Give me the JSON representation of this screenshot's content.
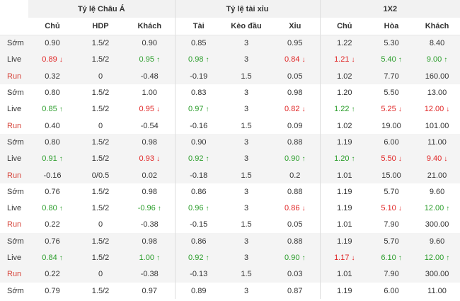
{
  "groups": [
    {
      "title": "Tỷ lệ Châu Á",
      "columns": [
        "Chủ",
        "HDP",
        "Khách"
      ]
    },
    {
      "title": "Tỷ lệ tài xỉu",
      "columns": [
        "Tài",
        "Kèo đầu",
        "Xỉu"
      ]
    },
    {
      "title": "1X2",
      "columns": [
        "Chủ",
        "Hòa",
        "Khách"
      ]
    }
  ],
  "colors": {
    "up": "#2a9d2a",
    "down": "#e02424",
    "run_label": "#d6443a"
  },
  "rows": [
    {
      "label": "Sớm",
      "type": "som",
      "cells": [
        {
          "v": "0.90"
        },
        {
          "v": "1.5/2"
        },
        {
          "v": "0.90"
        },
        {
          "v": "0.85"
        },
        {
          "v": "3"
        },
        {
          "v": "0.95"
        },
        {
          "v": "1.22"
        },
        {
          "v": "5.30"
        },
        {
          "v": "8.40"
        }
      ]
    },
    {
      "label": "Live",
      "type": "live",
      "cells": [
        {
          "v": "0.89",
          "d": "down"
        },
        {
          "v": "1.5/2"
        },
        {
          "v": "0.95",
          "d": "up"
        },
        {
          "v": "0.98",
          "d": "up"
        },
        {
          "v": "3"
        },
        {
          "v": "0.84",
          "d": "down"
        },
        {
          "v": "1.21",
          "d": "down"
        },
        {
          "v": "5.40",
          "d": "up"
        },
        {
          "v": "9.00",
          "d": "up"
        }
      ]
    },
    {
      "label": "Run",
      "type": "run",
      "cells": [
        {
          "v": "0.32"
        },
        {
          "v": "0"
        },
        {
          "v": "-0.48"
        },
        {
          "v": "-0.19"
        },
        {
          "v": "1.5"
        },
        {
          "v": "0.05"
        },
        {
          "v": "1.02"
        },
        {
          "v": "7.70"
        },
        {
          "v": "160.00"
        }
      ]
    },
    {
      "label": "Sớm",
      "type": "som",
      "cells": [
        {
          "v": "0.80"
        },
        {
          "v": "1.5/2"
        },
        {
          "v": "1.00"
        },
        {
          "v": "0.83"
        },
        {
          "v": "3"
        },
        {
          "v": "0.98"
        },
        {
          "v": "1.20"
        },
        {
          "v": "5.50"
        },
        {
          "v": "13.00"
        }
      ]
    },
    {
      "label": "Live",
      "type": "live",
      "cells": [
        {
          "v": "0.85",
          "d": "up"
        },
        {
          "v": "1.5/2"
        },
        {
          "v": "0.95",
          "d": "down"
        },
        {
          "v": "0.97",
          "d": "up"
        },
        {
          "v": "3"
        },
        {
          "v": "0.82",
          "d": "down"
        },
        {
          "v": "1.22",
          "d": "up"
        },
        {
          "v": "5.25",
          "d": "down"
        },
        {
          "v": "12.00",
          "d": "down"
        }
      ]
    },
    {
      "label": "Run",
      "type": "run",
      "cells": [
        {
          "v": "0.40"
        },
        {
          "v": "0"
        },
        {
          "v": "-0.54"
        },
        {
          "v": "-0.16"
        },
        {
          "v": "1.5"
        },
        {
          "v": "0.09"
        },
        {
          "v": "1.02"
        },
        {
          "v": "19.00"
        },
        {
          "v": "101.00"
        }
      ]
    },
    {
      "label": "Sớm",
      "type": "som",
      "cells": [
        {
          "v": "0.80"
        },
        {
          "v": "1.5/2"
        },
        {
          "v": "0.98"
        },
        {
          "v": "0.90"
        },
        {
          "v": "3"
        },
        {
          "v": "0.88"
        },
        {
          "v": "1.19"
        },
        {
          "v": "6.00"
        },
        {
          "v": "11.00"
        }
      ]
    },
    {
      "label": "Live",
      "type": "live",
      "cells": [
        {
          "v": "0.91",
          "d": "up"
        },
        {
          "v": "1.5/2"
        },
        {
          "v": "0.93",
          "d": "down"
        },
        {
          "v": "0.92",
          "d": "up"
        },
        {
          "v": "3"
        },
        {
          "v": "0.90",
          "d": "up"
        },
        {
          "v": "1.20",
          "d": "up"
        },
        {
          "v": "5.50",
          "d": "down"
        },
        {
          "v": "9.40",
          "d": "down"
        }
      ]
    },
    {
      "label": "Run",
      "type": "run",
      "cells": [
        {
          "v": "-0.16"
        },
        {
          "v": "0/0.5"
        },
        {
          "v": "0.02"
        },
        {
          "v": "-0.18"
        },
        {
          "v": "1.5"
        },
        {
          "v": "0.2"
        },
        {
          "v": "1.01"
        },
        {
          "v": "15.00"
        },
        {
          "v": "21.00"
        }
      ]
    },
    {
      "label": "Sớm",
      "type": "som",
      "cells": [
        {
          "v": "0.76"
        },
        {
          "v": "1.5/2"
        },
        {
          "v": "0.98"
        },
        {
          "v": "0.86"
        },
        {
          "v": "3"
        },
        {
          "v": "0.88"
        },
        {
          "v": "1.19"
        },
        {
          "v": "5.70"
        },
        {
          "v": "9.60"
        }
      ]
    },
    {
      "label": "Live",
      "type": "live",
      "cells": [
        {
          "v": "0.80",
          "d": "up"
        },
        {
          "v": "1.5/2"
        },
        {
          "v": "-0.96",
          "d": "up"
        },
        {
          "v": "0.96",
          "d": "up"
        },
        {
          "v": "3"
        },
        {
          "v": "0.86",
          "d": "down"
        },
        {
          "v": "1.19"
        },
        {
          "v": "5.10",
          "d": "down"
        },
        {
          "v": "12.00",
          "d": "up"
        }
      ]
    },
    {
      "label": "Run",
      "type": "run",
      "cells": [
        {
          "v": "0.22"
        },
        {
          "v": "0"
        },
        {
          "v": "-0.38"
        },
        {
          "v": "-0.15"
        },
        {
          "v": "1.5"
        },
        {
          "v": "0.05"
        },
        {
          "v": "1.01"
        },
        {
          "v": "7.90"
        },
        {
          "v": "300.00"
        }
      ]
    },
    {
      "label": "Sớm",
      "type": "som",
      "cells": [
        {
          "v": "0.76"
        },
        {
          "v": "1.5/2"
        },
        {
          "v": "0.98"
        },
        {
          "v": "0.86"
        },
        {
          "v": "3"
        },
        {
          "v": "0.88"
        },
        {
          "v": "1.19"
        },
        {
          "v": "5.70"
        },
        {
          "v": "9.60"
        }
      ]
    },
    {
      "label": "Live",
      "type": "live",
      "cells": [
        {
          "v": "0.84",
          "d": "up"
        },
        {
          "v": "1.5/2"
        },
        {
          "v": "1.00",
          "d": "up"
        },
        {
          "v": "0.92",
          "d": "up"
        },
        {
          "v": "3"
        },
        {
          "v": "0.90",
          "d": "up"
        },
        {
          "v": "1.17",
          "d": "down"
        },
        {
          "v": "6.10",
          "d": "up"
        },
        {
          "v": "12.00",
          "d": "up"
        }
      ]
    },
    {
      "label": "Run",
      "type": "run",
      "cells": [
        {
          "v": "0.22"
        },
        {
          "v": "0"
        },
        {
          "v": "-0.38"
        },
        {
          "v": "-0.13"
        },
        {
          "v": "1.5"
        },
        {
          "v": "0.03"
        },
        {
          "v": "1.01"
        },
        {
          "v": "7.90"
        },
        {
          "v": "300.00"
        }
      ]
    },
    {
      "label": "Sớm",
      "type": "som",
      "cells": [
        {
          "v": "0.79"
        },
        {
          "v": "1.5/2"
        },
        {
          "v": "0.97"
        },
        {
          "v": "0.89"
        },
        {
          "v": "3"
        },
        {
          "v": "0.87"
        },
        {
          "v": "1.19"
        },
        {
          "v": "6.00"
        },
        {
          "v": "11.00"
        }
      ]
    }
  ]
}
